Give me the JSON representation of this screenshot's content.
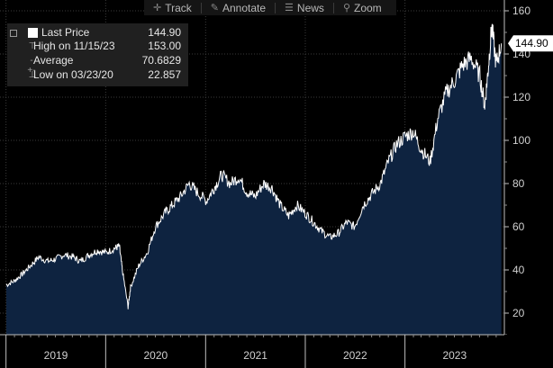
{
  "toolbar": {
    "items": [
      {
        "label": "Track",
        "icon": "crosshair-icon"
      },
      {
        "label": "Annotate",
        "icon": "pencil-icon"
      },
      {
        "label": "News",
        "icon": "news-icon"
      },
      {
        "label": "Zoom",
        "icon": "magnifier-icon"
      }
    ]
  },
  "legend": {
    "rows": [
      {
        "label": "Last Price",
        "value": "144.90"
      },
      {
        "label": "High on 11/15/23",
        "value": "153.00"
      },
      {
        "label": "Average",
        "value": "70.6829"
      },
      {
        "label": "Low on 03/23/20",
        "value": "22.857"
      }
    ]
  },
  "colors": {
    "background": "#000000",
    "area_fill": "#0e2340",
    "line": "#ffffff",
    "grid": "#3a3a3a",
    "tag_bg": "#ffffff",
    "tag_text": "#000000"
  },
  "chart_data": {
    "type": "area",
    "x_unit": "date",
    "x": [
      "2019-01-02",
      "2019-02-01",
      "2019-03-01",
      "2019-04-01",
      "2019-05-01",
      "2019-06-03",
      "2019-07-01",
      "2019-08-01",
      "2019-09-03",
      "2019-10-01",
      "2019-11-01",
      "2019-12-02",
      "2020-01-02",
      "2020-02-03",
      "2020-02-20",
      "2020-03-02",
      "2020-03-23",
      "2020-04-01",
      "2020-05-01",
      "2020-06-01",
      "2020-07-01",
      "2020-08-03",
      "2020-09-01",
      "2020-10-01",
      "2020-11-02",
      "2020-12-01",
      "2021-01-04",
      "2021-02-01",
      "2021-03-01",
      "2021-04-01",
      "2021-05-03",
      "2021-06-01",
      "2021-07-01",
      "2021-08-02",
      "2021-09-01",
      "2021-10-01",
      "2021-11-01",
      "2021-12-01",
      "2022-01-03",
      "2022-02-01",
      "2022-03-01",
      "2022-04-01",
      "2022-05-02",
      "2022-06-01",
      "2022-07-01",
      "2022-08-01",
      "2022-09-01",
      "2022-10-03",
      "2022-11-01",
      "2022-12-01",
      "2023-01-03",
      "2023-02-01",
      "2023-03-01",
      "2023-04-03",
      "2023-05-01",
      "2023-06-01",
      "2023-07-03",
      "2023-08-01",
      "2023-09-01",
      "2023-10-02",
      "2023-10-20",
      "2023-11-01",
      "2023-11-15",
      "2023-12-01",
      "2023-12-20"
    ],
    "values": [
      33,
      35,
      38,
      42,
      46,
      44,
      45,
      47,
      46,
      44,
      47,
      49,
      48,
      50,
      51,
      40,
      22.857,
      32,
      42,
      48,
      60,
      66,
      70,
      74,
      80,
      76,
      72,
      78,
      84,
      80,
      83,
      76,
      74,
      80,
      78,
      70,
      65,
      70,
      66,
      62,
      58,
      55,
      57,
      62,
      60,
      70,
      75,
      80,
      90,
      98,
      102,
      104,
      96,
      90,
      110,
      122,
      128,
      135,
      138,
      130,
      116,
      132,
      153,
      135,
      144.9
    ],
    "ylim": [
      10,
      165
    ],
    "y_ticks": [
      20,
      40,
      60,
      80,
      100,
      120,
      140,
      160
    ],
    "x_tick_labels": [
      "2019",
      "2020",
      "2021",
      "2022",
      "2023"
    ],
    "last_price_tag": "144.90",
    "grid": true
  }
}
